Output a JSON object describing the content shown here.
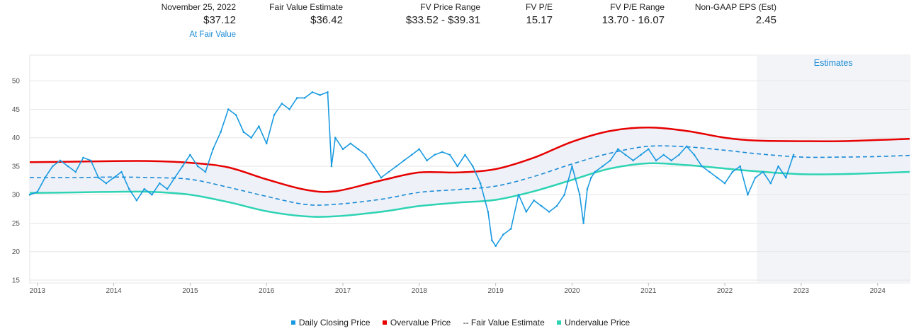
{
  "header": {
    "date": "November 25, 2022",
    "price": "$37.12",
    "status": "At Fair Value",
    "fve_label": "Fair Value Estimate",
    "fve_value": "$36.42",
    "range_label": "FV Price Range",
    "range_value": "$33.52 - $39.31",
    "pe_label": "FV P/E",
    "pe_value": "15.17",
    "pe_range_label": "FV P/E Range",
    "pe_range_value": "13.70 - 16.07",
    "eps_label": "Non-GAAP EPS (Est)",
    "eps_value": "2.45"
  },
  "colors": {
    "daily": "#1a9ae0",
    "overvalue": "#e60000",
    "fair_value": "#1a8bd6",
    "undervalue": "#2ed3b4",
    "band": "#eef1f8",
    "estimates_bg": "#f2f4f8",
    "grid": "#e6e6e6",
    "estimates_text": "#1a8bd6"
  },
  "chart_data": {
    "type": "line",
    "estimates_label": "Estimates",
    "estimates_start": 2022.42,
    "xlim": [
      2012.9,
      2024.42
    ],
    "ylim": [
      14.5,
      54.5
    ],
    "y_ticks": [
      15,
      20,
      25,
      30,
      35,
      40,
      45,
      50
    ],
    "x_ticks": [
      "2013",
      "2014",
      "2015",
      "2016",
      "2017",
      "2018",
      "2019",
      "2020",
      "2021",
      "2022",
      "2023",
      "2024"
    ],
    "grid": true,
    "legend_position": "bottom",
    "legend": [
      "Daily Closing Price",
      "Overvalue Price",
      "-- Fair Value Estimate",
      "Undervalue Price"
    ],
    "series": [
      {
        "name": "Daily Closing Price",
        "x": [
          2012.9,
          2013.0,
          2013.1,
          2013.2,
          2013.3,
          2013.4,
          2013.5,
          2013.6,
          2013.7,
          2013.8,
          2013.9,
          2014.0,
          2014.1,
          2014.2,
          2014.3,
          2014.4,
          2014.5,
          2014.6,
          2014.7,
          2014.8,
          2014.9,
          2015.0,
          2015.1,
          2015.2,
          2015.3,
          2015.4,
          2015.5,
          2015.6,
          2015.7,
          2015.8,
          2015.9,
          2016.0,
          2016.1,
          2016.2,
          2016.3,
          2016.4,
          2016.5,
          2016.6,
          2016.7,
          2016.8,
          2016.85,
          2016.9,
          2017.0,
          2017.1,
          2017.2,
          2017.3,
          2017.4,
          2017.5,
          2017.6,
          2017.7,
          2017.8,
          2017.9,
          2018.0,
          2018.1,
          2018.2,
          2018.3,
          2018.4,
          2018.5,
          2018.6,
          2018.7,
          2018.8,
          2018.9,
          2018.95,
          2019.0,
          2019.1,
          2019.2,
          2019.3,
          2019.4,
          2019.5,
          2019.6,
          2019.7,
          2019.8,
          2019.9,
          2020.0,
          2020.1,
          2020.15,
          2020.2,
          2020.25,
          2020.3,
          2020.4,
          2020.5,
          2020.6,
          2020.7,
          2020.8,
          2020.9,
          2021.0,
          2021.1,
          2021.2,
          2021.3,
          2021.4,
          2021.5,
          2021.6,
          2021.7,
          2021.8,
          2021.9,
          2022.0,
          2022.1,
          2022.2,
          2022.3,
          2022.4,
          2022.5,
          2022.6,
          2022.7,
          2022.8,
          2022.9
        ],
        "y": [
          30,
          30.5,
          33,
          35,
          36,
          35,
          34,
          36.5,
          36,
          33,
          32,
          33,
          34,
          31,
          29,
          31,
          30,
          32,
          31,
          33,
          35,
          37,
          35,
          34,
          38,
          41,
          45,
          44,
          41,
          40,
          42,
          39,
          44,
          46,
          45,
          47,
          47,
          48,
          47.5,
          48,
          35,
          40,
          38,
          39,
          38,
          37,
          35,
          33,
          34,
          35,
          36,
          37,
          38,
          36,
          37,
          37.5,
          37,
          35,
          37,
          35,
          32,
          27,
          22,
          21,
          23,
          24,
          30,
          27,
          29,
          28,
          27,
          28,
          30,
          35,
          30,
          25,
          31,
          33,
          34,
          35,
          36,
          38,
          37,
          36,
          37,
          38,
          36,
          37,
          36,
          37,
          38.5,
          37,
          35,
          34,
          33,
          32,
          34,
          35,
          30,
          33,
          34,
          32,
          35,
          33,
          37
        ]
      },
      {
        "name": "Overvalue Price",
        "x": [
          2012.9,
          2013.5,
          2014.0,
          2014.5,
          2015.0,
          2015.5,
          2016.0,
          2016.5,
          2016.9,
          2017.5,
          2018.0,
          2018.5,
          2019.0,
          2019.5,
          2020.0,
          2020.5,
          2021.0,
          2021.5,
          2022.0,
          2022.42,
          2023.0,
          2023.5,
          2024.0,
          2024.42
        ],
        "y": [
          35.7,
          35.8,
          35.9,
          35.9,
          35.6,
          34.8,
          32.7,
          30.9,
          30.6,
          32.5,
          33.9,
          33.9,
          34.5,
          36.5,
          39.3,
          41.2,
          41.8,
          41.2,
          40,
          39.5,
          39.4,
          39.4,
          39.6,
          39.8
        ]
      },
      {
        "name": "Fair Value Estimate",
        "x": [
          2012.9,
          2013.5,
          2014.0,
          2014.5,
          2015.0,
          2015.5,
          2016.0,
          2016.5,
          2016.9,
          2017.5,
          2018.0,
          2018.5,
          2019.0,
          2019.5,
          2020.0,
          2020.5,
          2021.0,
          2021.5,
          2022.0,
          2022.42,
          2023.0,
          2023.5,
          2024.0,
          2024.42
        ],
        "y": [
          33,
          33,
          33.1,
          33,
          32.7,
          31.3,
          29.7,
          28.3,
          28.3,
          29.2,
          30.4,
          30.9,
          31.5,
          33.2,
          35.4,
          37.3,
          38.5,
          38.4,
          37.8,
          37.2,
          36.6,
          36.6,
          36.7,
          36.9
        ]
      },
      {
        "name": "Undervalue Price",
        "x": [
          2012.9,
          2013.5,
          2014.0,
          2014.5,
          2015.0,
          2015.5,
          2016.0,
          2016.5,
          2016.9,
          2017.5,
          2018.0,
          2018.5,
          2019.0,
          2019.5,
          2020.0,
          2020.5,
          2021.0,
          2021.5,
          2022.0,
          2022.42,
          2023.0,
          2023.5,
          2024.0,
          2024.42
        ],
        "y": [
          30.3,
          30.4,
          30.5,
          30.5,
          30,
          28.7,
          27.1,
          26.2,
          26.2,
          27,
          28,
          28.6,
          29.1,
          30.6,
          32.6,
          34.6,
          35.5,
          35.2,
          34.6,
          34.1,
          33.6,
          33.6,
          33.8,
          34
        ]
      }
    ]
  }
}
